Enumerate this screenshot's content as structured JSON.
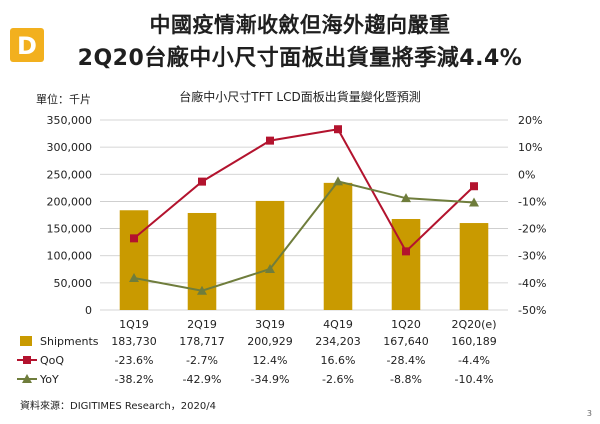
{
  "slide": {
    "headline_1": "中國疫情漸收斂但海外趨向嚴重",
    "headline_2": "2Q20台廠中小尺寸面板出貨量將季減4.4%",
    "source": "資料來源：DIGITIMES Research，2020/4",
    "page_number": "3",
    "logo_letter": "D",
    "colors": {
      "logo": "#f2b01e",
      "bar": "#c99a00",
      "qoq": "#b3132e",
      "yoy": "#6f7d3c",
      "grid": "#c8c8c8"
    }
  },
  "chart_data": {
    "type": "bar",
    "title": "台廠中小尺寸TFT LCD面板出貨量變化暨預測",
    "unit_label": "單位：千片",
    "categories": [
      "1Q19",
      "2Q19",
      "3Q19",
      "4Q19",
      "1Q20",
      "2Q20(e)"
    ],
    "series": [
      {
        "name": "Shipments",
        "type": "bar",
        "axis": "left",
        "values": [
          183730,
          178717,
          200929,
          234203,
          167640,
          160189
        ],
        "labels": [
          "183,730",
          "178,717",
          "200,929",
          "234,203",
          "167,640",
          "160,189"
        ]
      },
      {
        "name": "QoQ",
        "type": "line",
        "axis": "right",
        "values": [
          -23.6,
          -2.7,
          12.4,
          16.6,
          -28.4,
          -4.4
        ],
        "labels": [
          "-23.6%",
          "-2.7%",
          "12.4%",
          "16.6%",
          "-28.4%",
          "-4.4%"
        ]
      },
      {
        "name": "YoY",
        "type": "line",
        "axis": "right",
        "values": [
          -38.2,
          -42.9,
          -34.9,
          -2.6,
          -8.8,
          -10.4
        ],
        "labels": [
          "-38.2%",
          "-42.9%",
          "-34.9%",
          "-2.6%",
          "-8.8%",
          "-10.4%"
        ]
      }
    ],
    "y_left": {
      "range": [
        0,
        350000
      ],
      "ticks": [
        "0",
        "50,000",
        "100,000",
        "150,000",
        "200,000",
        "250,000",
        "300,000",
        "350,000"
      ]
    },
    "y_right": {
      "range": [
        -50,
        20
      ],
      "ticks": [
        "-50%",
        "-40%",
        "-30%",
        "-20%",
        "-10%",
        "0%",
        "10%",
        "20%"
      ]
    },
    "grid": true,
    "legend": "data-table below x-axis"
  }
}
